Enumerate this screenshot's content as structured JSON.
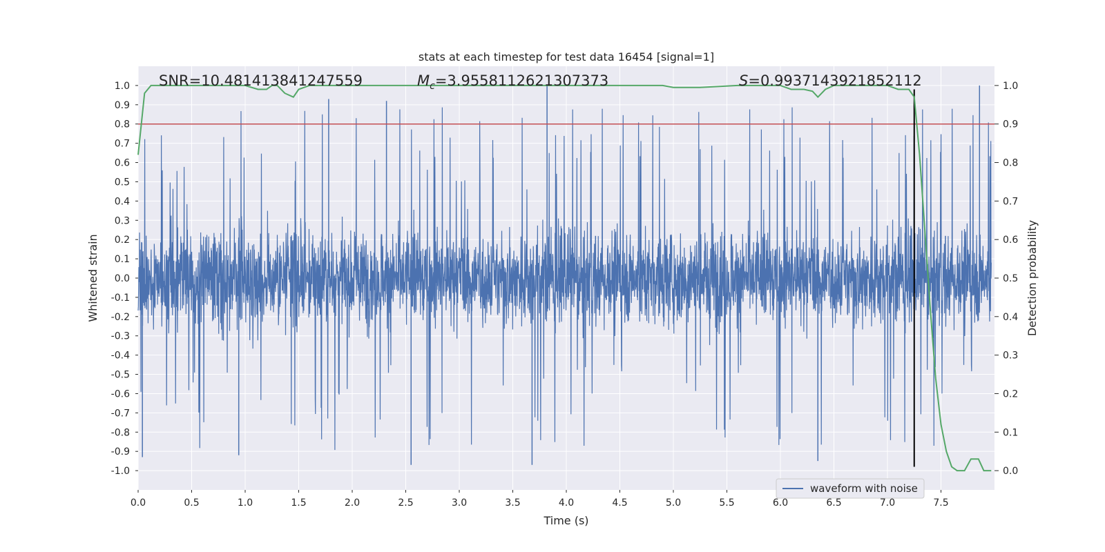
{
  "chart_data": {
    "type": "line",
    "title": "stats at each timestep for test data 16454 [signal=1]",
    "xlabel": "Time (s)",
    "ylabel_left": "Whitened strain",
    "ylabel_right": "Detection probability",
    "xlim": [
      0.0,
      8.0
    ],
    "ylim_left": [
      -1.1,
      1.1
    ],
    "ylim_right": [
      -0.05,
      1.05
    ],
    "x_ticks": [
      0.0,
      0.5,
      1.0,
      1.5,
      2.0,
      2.5,
      3.0,
      3.5,
      4.0,
      4.5,
      5.0,
      5.5,
      6.0,
      6.5,
      7.0,
      7.5
    ],
    "y_ticks_left": [
      -1.0,
      -0.9,
      -0.8,
      -0.7,
      -0.6,
      -0.5,
      -0.4,
      -0.3,
      -0.2,
      -0.1,
      0.0,
      0.1,
      0.2,
      0.3,
      0.4,
      0.5,
      0.6,
      0.7,
      0.8,
      0.9,
      1.0
    ],
    "y_ticks_right": [
      0.0,
      0.1,
      0.2,
      0.3,
      0.4,
      0.5,
      0.6,
      0.7,
      0.8,
      0.9,
      1.0
    ],
    "grid": true,
    "legend_position": "bottom-right",
    "annotations": {
      "snr": "SNR=10.481413841247559",
      "mc_symbol": "M",
      "mc_sub": "c",
      "mc_value": "=3.9558112621307373",
      "s_symbol": "S",
      "s_value": "=0.9937143921852112"
    },
    "series": [
      {
        "name": "waveform with noise",
        "axis": "left",
        "color": "#4c72b0",
        "kind": "dense-noise",
        "sample_rate_hz": 2048,
        "envelope_note": "dense band mostly within ±0.45, peaks near ±1.0",
        "notable_peaks": [
          {
            "x": 3.82,
            "y": 1.0
          },
          {
            "x": 7.86,
            "y": 1.0
          },
          {
            "x": 1.78,
            "y": 0.93
          },
          {
            "x": 2.32,
            "y": 0.92
          },
          {
            "x": 2.55,
            "y": -0.97
          },
          {
            "x": 3.68,
            "y": -0.97
          },
          {
            "x": 0.04,
            "y": -0.93
          },
          {
            "x": 6.35,
            "y": -0.95
          },
          {
            "x": 0.94,
            "y": -0.92
          }
        ]
      },
      {
        "name": "",
        "axis": "right",
        "color": "#55a868",
        "x": [
          0.0,
          0.06,
          0.12,
          0.5,
          1.0,
          1.12,
          1.2,
          1.25,
          1.3,
          1.37,
          1.45,
          1.5,
          1.6,
          1.75,
          2.0,
          3.0,
          4.0,
          4.9,
          5.0,
          5.1,
          5.25,
          5.6,
          6.0,
          6.1,
          6.15,
          6.22,
          6.3,
          6.35,
          6.42,
          6.5,
          6.6,
          7.0,
          7.1,
          7.2,
          7.25,
          7.3,
          7.35,
          7.4,
          7.45,
          7.5,
          7.55,
          7.6,
          7.65,
          7.72,
          7.78,
          7.85,
          7.9,
          7.97
        ],
        "values": [
          0.82,
          0.98,
          1.0,
          1.0,
          1.0,
          0.99,
          0.99,
          1.0,
          1.0,
          0.98,
          0.97,
          0.99,
          1.0,
          1.0,
          1.0,
          1.0,
          1.0,
          1.0,
          0.995,
          0.995,
          0.995,
          1.0,
          1.0,
          0.99,
          0.99,
          0.99,
          0.985,
          0.97,
          0.99,
          1.0,
          1.0,
          1.0,
          0.99,
          0.99,
          0.97,
          0.82,
          0.62,
          0.42,
          0.24,
          0.12,
          0.05,
          0.01,
          0.0,
          0.0,
          0.03,
          0.03,
          0.0,
          0.0
        ]
      }
    ],
    "reference_lines": [
      {
        "kind": "horizontal",
        "axis": "left",
        "y": 0.8,
        "color": "#c44e52"
      },
      {
        "kind": "vertical",
        "x": 7.25,
        "y_from": -0.98,
        "y_to": 0.98,
        "color": "#000000"
      }
    ]
  }
}
